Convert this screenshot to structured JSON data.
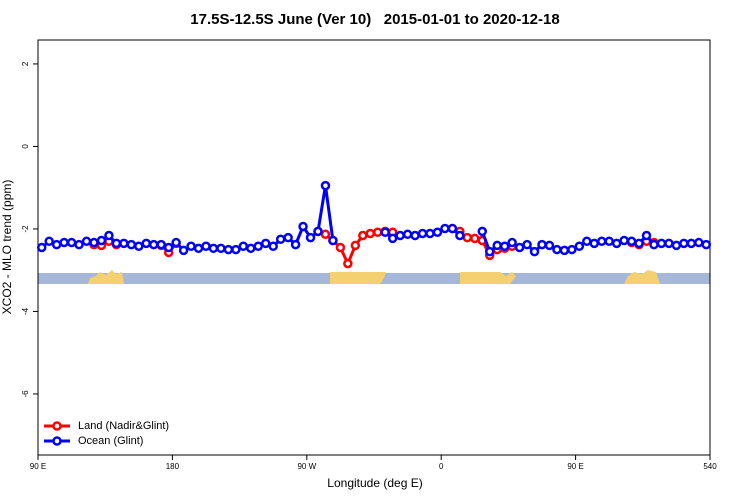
{
  "chart_data": {
    "type": "line",
    "title": "17.5S-12.5S June (Ver 10)   2015-01-01 to 2020-12-18",
    "x_label": "Longitude (deg E)",
    "y_label": "XCO2 - MLO trend (ppm)",
    "x": [
      92.5,
      97.5,
      102.5,
      107.5,
      112.5,
      117.5,
      122.5,
      127.5,
      132.5,
      137.5,
      142.5,
      147.5,
      152.5,
      157.5,
      162.5,
      167.5,
      172.5,
      177.5,
      182.5,
      187.5,
      192.5,
      197.5,
      202.5,
      207.5,
      212.5,
      217.5,
      222.5,
      227.5,
      232.5,
      237.5,
      242.5,
      247.5,
      252.5,
      257.5,
      262.5,
      267.5,
      272.5,
      277.5,
      282.5,
      287.5,
      292.5,
      297.5,
      302.5,
      307.5,
      312.5,
      317.5,
      322.5,
      327.5,
      332.5,
      337.5,
      342.5,
      347.5,
      352.5,
      357.5,
      362.5,
      367.5,
      372.5,
      377.5,
      382.5,
      387.5,
      392.5,
      397.5,
      402.5,
      407.5,
      412.5,
      417.5,
      422.5,
      427.5,
      432.5,
      437.5,
      442.5,
      447.5,
      452.5,
      457.5,
      462.5,
      467.5,
      472.5,
      477.5,
      482.5,
      487.5,
      492.5,
      497.5,
      502.5,
      507.5,
      512.5,
      517.5,
      522.5,
      527.5,
      532.5,
      537.5
    ],
    "series": [
      {
        "name": "Land (Nadir&Glint)",
        "color": "#ff0000",
        "values": [
          null,
          null,
          null,
          null,
          null,
          null,
          null,
          -2.38,
          -2.4,
          -2.3,
          -2.38,
          null,
          null,
          null,
          null,
          null,
          -2.4,
          -2.57,
          -2.35,
          null,
          null,
          null,
          null,
          null,
          null,
          null,
          null,
          null,
          null,
          null,
          null,
          null,
          null,
          null,
          null,
          null,
          null,
          -2.06,
          -2.13,
          -2.28,
          -2.45,
          -2.84,
          -2.4,
          -2.16,
          -2.11,
          -2.08,
          -2.06,
          -2.08,
          null,
          null,
          null,
          null,
          null,
          null,
          null,
          -1.99,
          -2.06,
          -2.21,
          -2.23,
          -2.28,
          -2.64,
          -2.5,
          -2.47,
          -2.42,
          null,
          null,
          null,
          null,
          null,
          null,
          null,
          null,
          null,
          null,
          null,
          null,
          null,
          null,
          null,
          -2.33,
          -2.38,
          -2.3,
          -2.33,
          null,
          null,
          null,
          null,
          null,
          null,
          null
        ]
      },
      {
        "name": "Ocean (Glint)",
        "color": "#0000ff",
        "values": [
          -2.45,
          -2.3,
          -2.38,
          -2.33,
          -2.33,
          -2.38,
          -2.3,
          -2.33,
          -2.28,
          -2.16,
          -2.35,
          -2.35,
          -2.38,
          -2.42,
          -2.35,
          -2.38,
          -2.38,
          -2.45,
          -2.33,
          -2.52,
          -2.42,
          -2.47,
          -2.42,
          -2.47,
          -2.47,
          -2.5,
          -2.5,
          -2.42,
          -2.47,
          -2.42,
          -2.35,
          -2.42,
          -2.25,
          -2.21,
          -2.38,
          -1.94,
          -2.21,
          -2.06,
          -0.95,
          -2.28,
          null,
          null,
          null,
          null,
          null,
          null,
          -2.08,
          -2.23,
          -2.16,
          -2.13,
          -2.16,
          -2.11,
          -2.11,
          -2.08,
          -1.99,
          -1.99,
          -2.16,
          null,
          null,
          -2.06,
          -2.55,
          -2.4,
          -2.42,
          -2.33,
          -2.45,
          -2.38,
          -2.55,
          -2.38,
          -2.4,
          -2.5,
          -2.52,
          -2.5,
          -2.42,
          -2.3,
          -2.35,
          -2.3,
          -2.3,
          -2.35,
          -2.28,
          -2.3,
          -2.35,
          -2.16,
          -2.38,
          -2.35,
          -2.35,
          -2.4,
          -2.35,
          -2.35,
          -2.33,
          -2.38
        ]
      }
    ],
    "xlim": [
      90,
      540
    ],
    "xticks": [
      {
        "value": 90,
        "label": "90 E"
      },
      180,
      {
        "value": 270,
        "label": "90 W"
      },
      {
        "value": 360,
        "label": "0"
      },
      {
        "value": 450,
        "label": "90 E"
      },
      540
    ],
    "ylim": [
      -7.48,
      2.58
    ],
    "yticks": [
      2,
      0,
      -2,
      -4,
      -6
    ],
    "legend_position": "bottomleft"
  }
}
